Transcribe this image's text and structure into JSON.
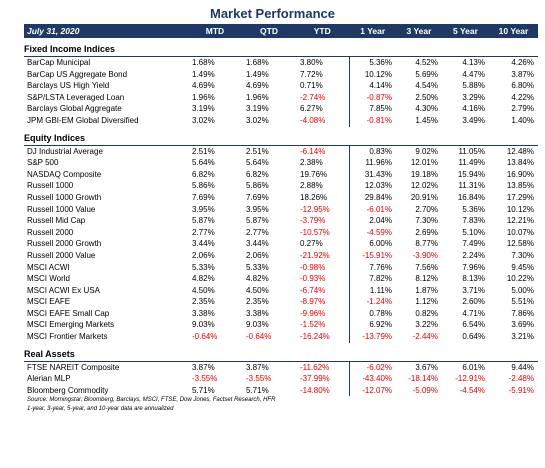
{
  "title": "Market Performance",
  "columns": {
    "date": "July 31, 2020",
    "mtd": "MTD",
    "qtd": "QTD",
    "ytd": "YTD",
    "y1": "1 Year",
    "y3": "3 Year",
    "y5": "5 Year",
    "y10": "10 Year"
  },
  "colors": {
    "header_bg": "#1f3864",
    "negative": "#e00000"
  },
  "sections": [
    {
      "name": "Fixed Income Indices",
      "rows": [
        [
          "BarCap Municipal",
          "1.68%",
          "1.68%",
          "3.80%",
          "5.36%",
          "4.52%",
          "4.13%",
          "4.26%"
        ],
        [
          "BarCap US Aggregate Bond",
          "1.49%",
          "1.49%",
          "7.72%",
          "10.12%",
          "5.69%",
          "4.47%",
          "3.87%"
        ],
        [
          "Barclays US High Yield",
          "4.69%",
          "4.69%",
          "0.71%",
          "4.14%",
          "4.54%",
          "5.88%",
          "6.80%"
        ],
        [
          "S&P/LSTA Leveraged Loan",
          "1.96%",
          "1.96%",
          "-2.74%",
          "-0.87%",
          "2.50%",
          "3.29%",
          "4.22%"
        ],
        [
          "Barclays Global Aggregate",
          "3.19%",
          "3.19%",
          "6.27%",
          "7.85%",
          "4.30%",
          "4.16%",
          "2.79%"
        ],
        [
          "JPM GBI-EM Global Diversified",
          "3.02%",
          "3.02%",
          "-4.08%",
          "-0.81%",
          "1.45%",
          "3.49%",
          "1.40%"
        ]
      ]
    },
    {
      "name": "Equity Indices",
      "rows": [
        [
          "DJ Industrial Average",
          "2.51%",
          "2.51%",
          "-6.14%",
          "0.83%",
          "9.02%",
          "11.05%",
          "12.48%"
        ],
        [
          "S&P 500",
          "5.64%",
          "5.64%",
          "2.38%",
          "11.96%",
          "12.01%",
          "11.49%",
          "13.84%"
        ],
        [
          "NASDAQ Composite",
          "6.82%",
          "6.82%",
          "19.76%",
          "31.43%",
          "19.18%",
          "15.94%",
          "16.90%"
        ],
        [
          "Russell 1000",
          "5.86%",
          "5.86%",
          "2.88%",
          "12.03%",
          "12.02%",
          "11.31%",
          "13.85%"
        ],
        [
          "Russell 1000 Growth",
          "7.69%",
          "7.69%",
          "18.26%",
          "29.84%",
          "20.91%",
          "16.84%",
          "17.29%"
        ],
        [
          "Russell 1000 Value",
          "3.95%",
          "3.95%",
          "-12.95%",
          "-6.01%",
          "2.70%",
          "5.36%",
          "10.12%"
        ],
        [
          "Russell Mid Cap",
          "5.87%",
          "5.87%",
          "-3.79%",
          "2.04%",
          "7.30%",
          "7.83%",
          "12.21%"
        ],
        [
          "Russell 2000",
          "2.77%",
          "2.77%",
          "-10.57%",
          "-4.59%",
          "2.69%",
          "5.10%",
          "10.07%"
        ],
        [
          "Russell 2000 Growth",
          "3.44%",
          "3.44%",
          "0.27%",
          "6.00%",
          "8.77%",
          "7.49%",
          "12.58%"
        ],
        [
          "Russell 2000 Value",
          "2.06%",
          "2.06%",
          "-21.92%",
          "-15.91%",
          "-3.90%",
          "2.24%",
          "7.30%"
        ],
        [
          "MSCI ACWI",
          "5.33%",
          "5.33%",
          "-0.98%",
          "7.76%",
          "7.56%",
          "7.96%",
          "9.45%"
        ],
        [
          "MSCI World",
          "4.82%",
          "4.82%",
          "-0.93%",
          "7.82%",
          "8.12%",
          "8.13%",
          "10.22%"
        ],
        [
          "MSCI ACWI Ex USA",
          "4.50%",
          "4.50%",
          "-6.74%",
          "1.11%",
          "1.87%",
          "3.71%",
          "5.00%"
        ],
        [
          "MSCI EAFE",
          "2.35%",
          "2.35%",
          "-8.97%",
          "-1.24%",
          "1.12%",
          "2.60%",
          "5.51%"
        ],
        [
          "MSCI EAFE Small Cap",
          "3.38%",
          "3.38%",
          "-9.96%",
          "0.78%",
          "0.82%",
          "4.71%",
          "7.86%"
        ],
        [
          "MSCI Emerging Markets",
          "9.03%",
          "9.03%",
          "-1.52%",
          "6.92%",
          "3.22%",
          "6.54%",
          "3.69%"
        ],
        [
          "MSCI Frontier Markets",
          "-0.64%",
          "-0.64%",
          "-16.24%",
          "-13.79%",
          "-2.44%",
          "0.64%",
          "3.21%"
        ]
      ]
    },
    {
      "name": "Real Assets",
      "rows": [
        [
          "FTSE NAREIT Composite",
          "3.87%",
          "3.87%",
          "-11.62%",
          "-6.02%",
          "3.67%",
          "6.01%",
          "9.44%"
        ],
        [
          "Alerian MLP",
          "-3.55%",
          "-3.55%",
          "-37.99%",
          "-43.40%",
          "-18.14%",
          "-12.91%",
          "-2.48%"
        ],
        [
          "Bloomberg Commodity",
          "5.71%",
          "5.71%",
          "-14.80%",
          "-12.07%",
          "-5.09%",
          "-4.54%",
          "-5.91%"
        ]
      ]
    }
  ],
  "footnotes": [
    "Source: Morningstar, Bloomberg, Barclays, MSCI, FTSE, Dow Jones, Factset Research, HFR",
    "1-year, 3-year, 5-year, and 10-year data are annualized"
  ]
}
